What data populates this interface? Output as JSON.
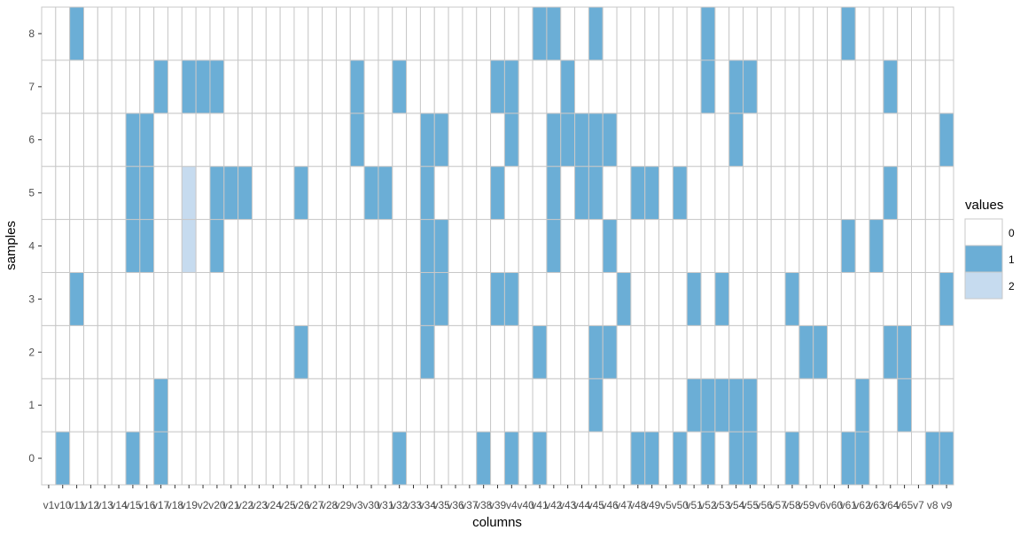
{
  "chart_data": {
    "type": "heatmap",
    "xlabel": "columns",
    "ylabel": "samples",
    "x_tick_labels": [
      "v1",
      "v10",
      "v11",
      "v12",
      "v13",
      "v14",
      "v15",
      "v16",
      "v17",
      "v18",
      "v19",
      "v2",
      "v20",
      "v21",
      "v22",
      "v23",
      "v24",
      "v25",
      "v26",
      "v27",
      "v28",
      "v29",
      "v3",
      "v30",
      "v31",
      "v32",
      "v33",
      "v34",
      "v35",
      "v36",
      "v37",
      "v38",
      "v39",
      "v4",
      "v40",
      "v41",
      "v42",
      "v43",
      "v44",
      "v45",
      "v46",
      "v47",
      "v48",
      "v49",
      "v5",
      "v50",
      "v51",
      "v52",
      "v53",
      "v54",
      "v55",
      "v56",
      "v57",
      "v58",
      "v59",
      "v6",
      "v60",
      "v61",
      "v62",
      "v63",
      "v64",
      "v65",
      "v7",
      "v8",
      "v9"
    ],
    "y_tick_labels": [
      "0",
      "1",
      "2",
      "3",
      "4",
      "5",
      "6",
      "7",
      "8"
    ],
    "grid": true,
    "legend": {
      "title": "values",
      "position": "right",
      "entries": [
        {
          "label": "0",
          "color": "#ffffff"
        },
        {
          "label": "1",
          "color": "#6baed6"
        },
        {
          "label": "2",
          "color": "#c6dbef"
        }
      ]
    },
    "cells_nonzero": [
      {
        "x": "v10",
        "y": "0",
        "value": 1
      },
      {
        "x": "v15",
        "y": "0",
        "value": 1
      },
      {
        "x": "v17",
        "y": "0",
        "value": 1
      },
      {
        "x": "v32",
        "y": "0",
        "value": 1
      },
      {
        "x": "v38",
        "y": "0",
        "value": 1
      },
      {
        "x": "v4",
        "y": "0",
        "value": 1
      },
      {
        "x": "v41",
        "y": "0",
        "value": 1
      },
      {
        "x": "v48",
        "y": "0",
        "value": 1
      },
      {
        "x": "v49",
        "y": "0",
        "value": 1
      },
      {
        "x": "v50",
        "y": "0",
        "value": 1
      },
      {
        "x": "v52",
        "y": "0",
        "value": 1
      },
      {
        "x": "v54",
        "y": "0",
        "value": 1
      },
      {
        "x": "v55",
        "y": "0",
        "value": 1
      },
      {
        "x": "v58",
        "y": "0",
        "value": 1
      },
      {
        "x": "v61",
        "y": "0",
        "value": 1
      },
      {
        "x": "v62",
        "y": "0",
        "value": 1
      },
      {
        "x": "v8",
        "y": "0",
        "value": 1
      },
      {
        "x": "v9",
        "y": "0",
        "value": 1
      },
      {
        "x": "v17",
        "y": "1",
        "value": 1
      },
      {
        "x": "v45",
        "y": "1",
        "value": 1
      },
      {
        "x": "v51",
        "y": "1",
        "value": 1
      },
      {
        "x": "v52",
        "y": "1",
        "value": 1
      },
      {
        "x": "v53",
        "y": "1",
        "value": 1
      },
      {
        "x": "v54",
        "y": "1",
        "value": 1
      },
      {
        "x": "v55",
        "y": "1",
        "value": 1
      },
      {
        "x": "v62",
        "y": "1",
        "value": 1
      },
      {
        "x": "v65",
        "y": "1",
        "value": 1
      },
      {
        "x": "v26",
        "y": "2",
        "value": 1
      },
      {
        "x": "v34",
        "y": "2",
        "value": 1
      },
      {
        "x": "v41",
        "y": "2",
        "value": 1
      },
      {
        "x": "v45",
        "y": "2",
        "value": 1
      },
      {
        "x": "v46",
        "y": "2",
        "value": 1
      },
      {
        "x": "v59",
        "y": "2",
        "value": 1
      },
      {
        "x": "v6",
        "y": "2",
        "value": 1
      },
      {
        "x": "v64",
        "y": "2",
        "value": 1
      },
      {
        "x": "v65",
        "y": "2",
        "value": 1
      },
      {
        "x": "v11",
        "y": "3",
        "value": 1
      },
      {
        "x": "v34",
        "y": "3",
        "value": 1
      },
      {
        "x": "v35",
        "y": "3",
        "value": 1
      },
      {
        "x": "v39",
        "y": "3",
        "value": 1
      },
      {
        "x": "v4",
        "y": "3",
        "value": 1
      },
      {
        "x": "v47",
        "y": "3",
        "value": 1
      },
      {
        "x": "v51",
        "y": "3",
        "value": 1
      },
      {
        "x": "v53",
        "y": "3",
        "value": 1
      },
      {
        "x": "v58",
        "y": "3",
        "value": 1
      },
      {
        "x": "v9",
        "y": "3",
        "value": 1
      },
      {
        "x": "v15",
        "y": "4",
        "value": 1
      },
      {
        "x": "v16",
        "y": "4",
        "value": 1
      },
      {
        "x": "v19",
        "y": "4",
        "value": 2
      },
      {
        "x": "v20",
        "y": "4",
        "value": 1
      },
      {
        "x": "v34",
        "y": "4",
        "value": 1
      },
      {
        "x": "v35",
        "y": "4",
        "value": 1
      },
      {
        "x": "v42",
        "y": "4",
        "value": 1
      },
      {
        "x": "v46",
        "y": "4",
        "value": 1
      },
      {
        "x": "v61",
        "y": "4",
        "value": 1
      },
      {
        "x": "v63",
        "y": "4",
        "value": 1
      },
      {
        "x": "v15",
        "y": "5",
        "value": 1
      },
      {
        "x": "v16",
        "y": "5",
        "value": 1
      },
      {
        "x": "v19",
        "y": "5",
        "value": 2
      },
      {
        "x": "v20",
        "y": "5",
        "value": 1
      },
      {
        "x": "v21",
        "y": "5",
        "value": 1
      },
      {
        "x": "v22",
        "y": "5",
        "value": 1
      },
      {
        "x": "v26",
        "y": "5",
        "value": 1
      },
      {
        "x": "v30",
        "y": "5",
        "value": 1
      },
      {
        "x": "v31",
        "y": "5",
        "value": 1
      },
      {
        "x": "v34",
        "y": "5",
        "value": 1
      },
      {
        "x": "v39",
        "y": "5",
        "value": 1
      },
      {
        "x": "v42",
        "y": "5",
        "value": 1
      },
      {
        "x": "v44",
        "y": "5",
        "value": 1
      },
      {
        "x": "v45",
        "y": "5",
        "value": 1
      },
      {
        "x": "v48",
        "y": "5",
        "value": 1
      },
      {
        "x": "v49",
        "y": "5",
        "value": 1
      },
      {
        "x": "v50",
        "y": "5",
        "value": 1
      },
      {
        "x": "v64",
        "y": "5",
        "value": 1
      },
      {
        "x": "v15",
        "y": "6",
        "value": 1
      },
      {
        "x": "v16",
        "y": "6",
        "value": 1
      },
      {
        "x": "v3",
        "y": "6",
        "value": 1
      },
      {
        "x": "v34",
        "y": "6",
        "value": 1
      },
      {
        "x": "v35",
        "y": "6",
        "value": 1
      },
      {
        "x": "v4",
        "y": "6",
        "value": 1
      },
      {
        "x": "v42",
        "y": "6",
        "value": 1
      },
      {
        "x": "v43",
        "y": "6",
        "value": 1
      },
      {
        "x": "v44",
        "y": "6",
        "value": 1
      },
      {
        "x": "v45",
        "y": "6",
        "value": 1
      },
      {
        "x": "v46",
        "y": "6",
        "value": 1
      },
      {
        "x": "v54",
        "y": "6",
        "value": 1
      },
      {
        "x": "v9",
        "y": "6",
        "value": 1
      },
      {
        "x": "v17",
        "y": "7",
        "value": 1
      },
      {
        "x": "v19",
        "y": "7",
        "value": 1
      },
      {
        "x": "v2",
        "y": "7",
        "value": 1
      },
      {
        "x": "v20",
        "y": "7",
        "value": 1
      },
      {
        "x": "v3",
        "y": "7",
        "value": 1
      },
      {
        "x": "v32",
        "y": "7",
        "value": 1
      },
      {
        "x": "v39",
        "y": "7",
        "value": 1
      },
      {
        "x": "v4",
        "y": "7",
        "value": 1
      },
      {
        "x": "v43",
        "y": "7",
        "value": 1
      },
      {
        "x": "v52",
        "y": "7",
        "value": 1
      },
      {
        "x": "v54",
        "y": "7",
        "value": 1
      },
      {
        "x": "v55",
        "y": "7",
        "value": 1
      },
      {
        "x": "v64",
        "y": "7",
        "value": 1
      },
      {
        "x": "v11",
        "y": "8",
        "value": 1
      },
      {
        "x": "v41",
        "y": "8",
        "value": 1
      },
      {
        "x": "v42",
        "y": "8",
        "value": 1
      },
      {
        "x": "v45",
        "y": "8",
        "value": 1
      },
      {
        "x": "v52",
        "y": "8",
        "value": 1
      },
      {
        "x": "v61",
        "y": "8",
        "value": 1
      }
    ]
  }
}
